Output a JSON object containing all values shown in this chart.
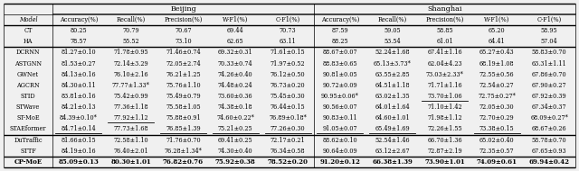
{
  "beijing_header": "Beijing",
  "shanghai_header": "Shanghai",
  "col_headers": [
    "Accuracy(%)",
    "Recall(%)",
    "Precision(%)",
    "W-F1(%)",
    "C-F1(%)"
  ],
  "all_rows": [
    {
      "model": "CT",
      "bold": false,
      "group": 0,
      "beijing": [
        "80.25",
        "70.79",
        "70.67",
        "69.44",
        "70.73"
      ],
      "shanghai": [
        "87.59",
        "59.05",
        "58.85",
        "65.20",
        "58.95"
      ],
      "ul_bj": [],
      "ul_sh": []
    },
    {
      "model": "HA",
      "bold": false,
      "group": 0,
      "beijing": [
        "78.57",
        "55.52",
        "73.10",
        "62.65",
        "63.11"
      ],
      "shanghai": [
        "88.25",
        "53.54",
        "61.01",
        "64.41",
        "57.04"
      ],
      "ul_bj": [],
      "ul_sh": []
    },
    {
      "model": "DCRNN",
      "bold": false,
      "group": 1,
      "beijing": [
        "81.27±0.10",
        "71.78±0.95",
        "71.46±0.74",
        "69.32±0.31",
        "71.61±0.15"
      ],
      "shanghai": [
        "88.67±0.07",
        "52.24±1.68",
        "67.41±1.16",
        "65.27±0.43",
        "58.83±0.70"
      ],
      "ul_bj": [],
      "ul_sh": []
    },
    {
      "model": "ASTGNN",
      "bold": false,
      "group": 1,
      "beijing": [
        "81.53±0.27",
        "72.14±3.29",
        "72.05±2.74",
        "70.33±0.74",
        "71.97±0.52"
      ],
      "shanghai": [
        "88.83±0.65",
        "65.13±3.73*",
        "62.04±4.23",
        "68.19±1.08",
        "63.31±1.11"
      ],
      "ul_bj": [],
      "ul_sh": []
    },
    {
      "model": "GWNet",
      "bold": false,
      "group": 1,
      "beijing": [
        "84.13±0.16",
        "76.10±2.16",
        "76.21±1.25",
        "74.26±0.40",
        "76.12±0.50"
      ],
      "shanghai": [
        "90.81±0.05",
        "63.55±2.85",
        "73.03±2.33*",
        "72.55±0.56",
        "67.86±0.70"
      ],
      "ul_bj": [],
      "ul_sh": []
    },
    {
      "model": "AGCRN",
      "bold": false,
      "group": 1,
      "beijing": [
        "84.30±0.11",
        "77.77±1.33*",
        "75.76±1.10",
        "74.48±0.24",
        "76.73±0.20"
      ],
      "shanghai": [
        "90.72±0.09",
        "64.51±1.18",
        "71.71±1.16",
        "72.54±0.27",
        "67.90±0.27"
      ],
      "ul_bj": [],
      "ul_sh": []
    },
    {
      "model": "STID",
      "bold": false,
      "group": 1,
      "beijing": [
        "83.81±0.16",
        "75.42±0.99",
        "75.49±0.79",
        "73.60±0.36",
        "75.45±0.30"
      ],
      "shanghai": [
        "90.95±0.06*",
        "63.02±1.35",
        "73.70±1.06",
        "72.75±0.27*",
        "67.92±0.39"
      ],
      "ul_bj": [],
      "ul_sh": [
        2
      ]
    },
    {
      "model": "STWave",
      "bold": false,
      "group": 1,
      "beijing": [
        "84.21±0.13",
        "77.36±1.18",
        "75.58±1.05",
        "74.38±0.18",
        "76.44±0.15"
      ],
      "shanghai": [
        "90.56±0.07",
        "64.01±1.64",
        "71.10±1.42",
        "72.05±0.30",
        "67.34±0.37"
      ],
      "ul_bj": [],
      "ul_sh": []
    },
    {
      "model": "ST-MoE",
      "bold": false,
      "group": 1,
      "beijing": [
        "84.39±0.10*",
        "77.92±1.12",
        "75.88±0.91",
        "74.60±0.22*",
        "76.89±0.18*"
      ],
      "shanghai": [
        "90.83±0.11",
        "64.60±1.01",
        "71.98±1.12",
        "72.70±0.29",
        "68.09±0.27*"
      ],
      "ul_bj": [
        1
      ],
      "ul_sh": []
    },
    {
      "model": "STAEformer",
      "bold": false,
      "group": 1,
      "beijing": [
        "84.71±0.14",
        "77.73±1.68",
        "76.85±1.39",
        "75.21±0.25",
        "77.26±0.30"
      ],
      "shanghai": [
        "91.05±0.07",
        "65.49±1.69",
        "72.26±1.55",
        "73.38±0.15",
        "68.67±0.26"
      ],
      "ul_bj": [
        0,
        2,
        3,
        4
      ],
      "ul_sh": [
        0,
        1,
        3
      ]
    },
    {
      "model": "DuTraffic",
      "bold": false,
      "group": 2,
      "beijing": [
        "81.66±0.15",
        "72.58±1.10",
        "71.76±0.70",
        "69.41±0.25",
        "72.17±0.21"
      ],
      "shanghai": [
        "88.62±0.10",
        "52.54±1.46",
        "66.70±1.36",
        "65.02±0.40",
        "58.78±0.70"
      ],
      "ul_bj": [],
      "ul_sh": []
    },
    {
      "model": "STTF",
      "bold": false,
      "group": 2,
      "beijing": [
        "84.19±0.16",
        "76.40±2.01",
        "76.28±1.34*",
        "74.30±0.40",
        "76.34±0.58"
      ],
      "shanghai": [
        "90.64±0.09",
        "63.12±2.67",
        "72.87±2.19",
        "72.35±0.57",
        "67.65±0.93"
      ],
      "ul_bj": [],
      "ul_sh": []
    },
    {
      "model": "CP-MoE",
      "bold": true,
      "group": 3,
      "beijing": [
        "85.09±0.13",
        "80.30±1.01",
        "76.82±0.76",
        "75.92±0.38",
        "78.52±0.20"
      ],
      "shanghai": [
        "91.20±0.12",
        "66.38±1.39",
        "73.90±1.01",
        "74.09±0.61",
        "69.94±0.42"
      ],
      "ul_bj": [],
      "ul_sh": []
    }
  ],
  "bg_color": "#f0f0f0",
  "lw_thick": 1.0,
  "lw_thin": 0.5
}
